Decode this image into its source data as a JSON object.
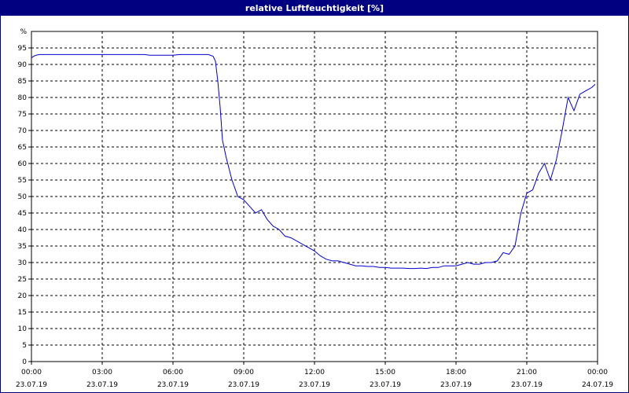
{
  "window": {
    "title": "relative Luftfeuchtigkeit [%]"
  },
  "chart_data": {
    "type": "line",
    "title": "relative Luftfeuchtigkeit [%]",
    "ylabel": "%",
    "ylim": [
      0,
      100
    ],
    "yticks": [
      0,
      5,
      10,
      15,
      20,
      25,
      30,
      35,
      40,
      45,
      50,
      55,
      60,
      65,
      70,
      75,
      80,
      85,
      90,
      95
    ],
    "xlim_hours": [
      0,
      24
    ],
    "xticks": [
      {
        "time": "00:00",
        "date": "23.07.19"
      },
      {
        "time": "03:00",
        "date": "23.07.19"
      },
      {
        "time": "06:00",
        "date": "23.07.19"
      },
      {
        "time": "09:00",
        "date": "23.07.19"
      },
      {
        "time": "12:00",
        "date": "23.07.19"
      },
      {
        "time": "15:00",
        "date": "23.07.19"
      },
      {
        "time": "18:00",
        "date": "23.07.19"
      },
      {
        "time": "21:00",
        "date": "23.07.19"
      },
      {
        "time": "00:00",
        "date": "24.07.19"
      }
    ],
    "grid": true,
    "line_color": "#0000cc",
    "series": [
      {
        "x": [
          0,
          0.1,
          0.2,
          0.35,
          0.5,
          1,
          1.5,
          2,
          2.5,
          3,
          3.5,
          4,
          4.5,
          4.8,
          5,
          5.5,
          6,
          6.3,
          6.5,
          7,
          7.5,
          7.7,
          7.8,
          7.9,
          8,
          8.1,
          8.25,
          8.5,
          8.75,
          9,
          9.25,
          9.5,
          9.75,
          10,
          10.25,
          10.5,
          10.75,
          11,
          11.25,
          11.5,
          11.75,
          12,
          12.25,
          12.5,
          12.75,
          13,
          13.25,
          13.5,
          13.75,
          14,
          14.25,
          14.5,
          14.75,
          15,
          15.25,
          15.5,
          15.75,
          16,
          16.25,
          16.5,
          16.75,
          17,
          17.25,
          17.5,
          17.75,
          18,
          18.25,
          18.5,
          18.75,
          19,
          19.25,
          19.5,
          19.75,
          20,
          20.25,
          20.5,
          20.75,
          21,
          21.25,
          21.5,
          21.75,
          22,
          22.25,
          22.5,
          22.75,
          23,
          23.25,
          23.5,
          23.75,
          23.9
        ],
        "y": [
          92,
          92.5,
          92.8,
          93,
          93,
          93,
          93,
          93,
          93,
          93,
          93,
          93,
          93,
          93,
          92.8,
          92.8,
          92.8,
          93,
          93,
          93,
          93,
          92.5,
          91,
          85,
          77,
          67,
          62,
          55,
          50,
          49,
          47,
          45,
          46,
          43,
          41,
          40,
          38,
          37.5,
          36.5,
          35.5,
          34.5,
          33.5,
          32,
          31,
          30.5,
          30.5,
          30,
          29.5,
          29,
          29,
          28.8,
          28.8,
          28.5,
          28.5,
          28.3,
          28.3,
          28.3,
          28.2,
          28.2,
          28.3,
          28.2,
          28.5,
          28.5,
          29,
          29,
          29,
          29.5,
          30,
          29.5,
          29.5,
          30,
          30,
          30.5,
          33,
          32.5,
          35,
          45,
          51,
          52,
          57,
          60,
          55,
          61,
          70,
          80,
          76,
          81,
          82,
          83,
          84
        ]
      }
    ]
  }
}
